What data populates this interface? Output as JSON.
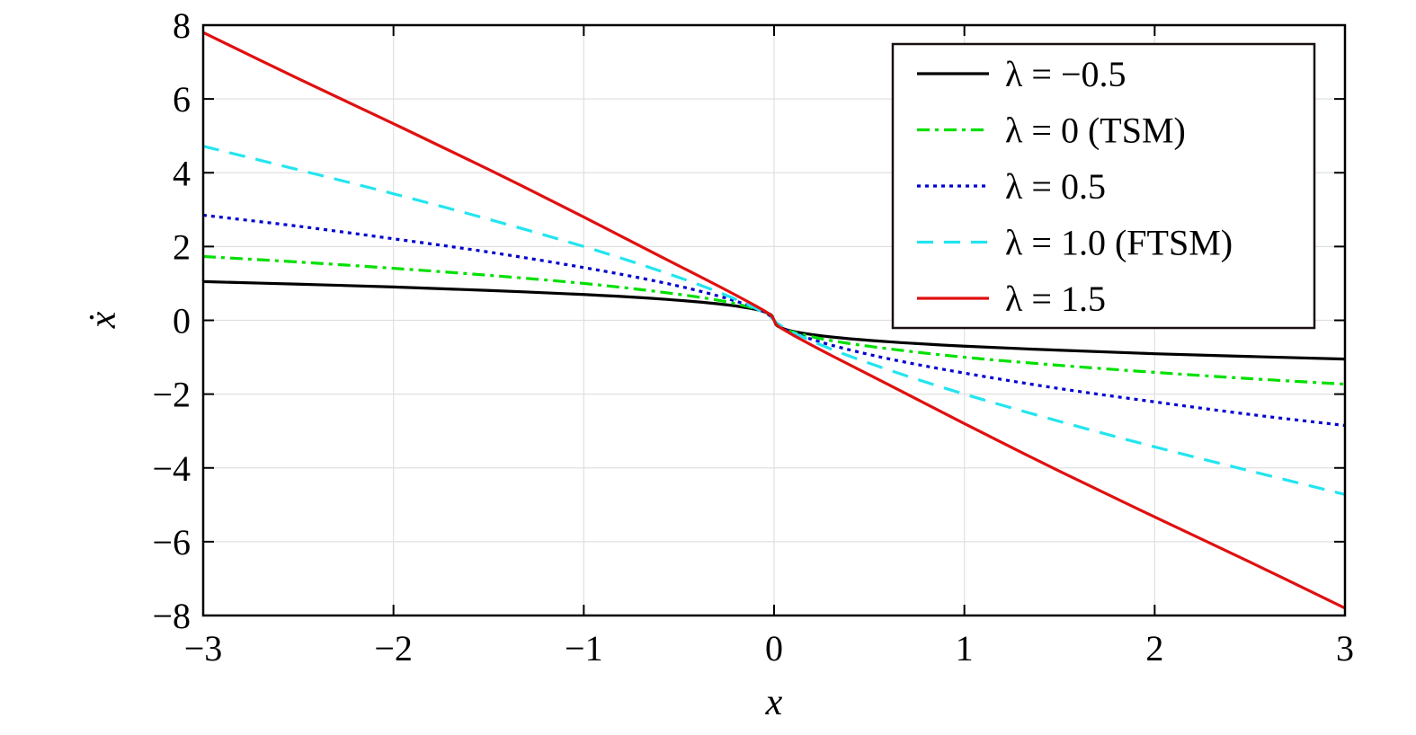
{
  "chart_data": {
    "type": "line",
    "title": "",
    "xlabel": "x",
    "ylabel": "ẋ",
    "xlim": [
      -3,
      3
    ],
    "ylim": [
      -8,
      8
    ],
    "xticks": [
      -3,
      -2,
      -1,
      0,
      1,
      2,
      3
    ],
    "yticks": [
      -8,
      -6,
      -4,
      -2,
      0,
      2,
      4,
      6,
      8
    ],
    "xtick_labels": [
      "−3",
      "−2",
      "−1",
      "0",
      "1",
      "2",
      "3"
    ],
    "ytick_labels": [
      "−8",
      "−6",
      "−4",
      "−2",
      "0",
      "2",
      "4",
      "6",
      "8"
    ],
    "grid": true,
    "legend_position": "top-right",
    "x": [
      -3,
      -2.5,
      -2,
      -1.5,
      -1,
      -0.6,
      -0.3,
      -0.1,
      -0.02,
      0,
      0.02,
      0.1,
      0.3,
      0.6,
      1,
      1.5,
      2,
      2.5,
      3
    ],
    "series": [
      {
        "name": "λ = −0.5",
        "color": "#000000",
        "style": "solid",
        "values": [
          1.05,
          0.98,
          0.905,
          0.81,
          0.7,
          0.58,
          0.45,
          0.3,
          0.16,
          0,
          -0.16,
          -0.3,
          -0.45,
          -0.58,
          -0.7,
          -0.81,
          -0.905,
          -0.98,
          -1.05
        ]
      },
      {
        "name": "λ = 0 (TSM)",
        "color": "#00e000",
        "style": "dashdot",
        "values": [
          1.73,
          1.58,
          1.41,
          1.22,
          1.0,
          0.77,
          0.55,
          0.32,
          0.14,
          0,
          -0.14,
          -0.32,
          -0.55,
          -0.77,
          -1.0,
          -1.22,
          -1.41,
          -1.58,
          -1.73
        ]
      },
      {
        "name": "λ = 0.5",
        "color": "#0000d0",
        "style": "dotted",
        "values": [
          2.85,
          2.55,
          2.21,
          1.85,
          1.43,
          1.04,
          0.67,
          0.34,
          0.12,
          0,
          -0.12,
          -0.34,
          -0.67,
          -1.04,
          -1.43,
          -1.85,
          -2.21,
          -2.55,
          -2.85
        ]
      },
      {
        "name": "λ = 1.0 (FTSM)",
        "color": "#22e5f0",
        "style": "dashed",
        "values": [
          4.72,
          4.08,
          3.43,
          2.74,
          2.0,
          1.34,
          0.78,
          0.33,
          0.09,
          0,
          -0.09,
          -0.33,
          -0.78,
          -1.34,
          -2.0,
          -2.74,
          -3.43,
          -4.08,
          -4.72
        ]
      },
      {
        "name": "λ = 1.5",
        "color": "#e01010",
        "style": "solid",
        "values": [
          7.8,
          6.55,
          5.33,
          4.09,
          2.8,
          1.74,
          0.95,
          0.4,
          0.15,
          0,
          -0.15,
          -0.4,
          -0.95,
          -1.74,
          -2.8,
          -4.09,
          -5.33,
          -6.55,
          -7.8
        ]
      }
    ]
  }
}
